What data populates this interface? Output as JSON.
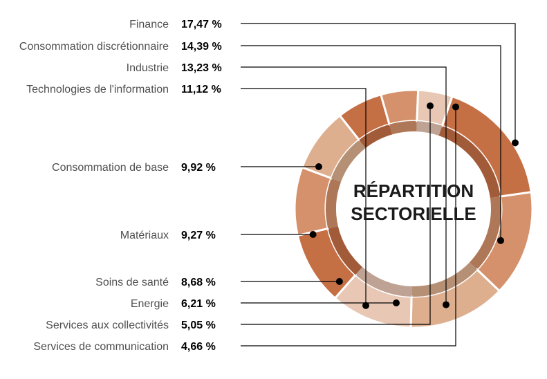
{
  "chart_data": {
    "type": "pie",
    "title_lines": [
      "RÉPARTITION",
      "SECTORIELLE"
    ],
    "categories": [
      "Finance",
      "Consommation discrétionnaire",
      "Industrie",
      "Technologies de l'information",
      "Consommation de base",
      "Matériaux",
      "Soins de santé",
      "Energie",
      "Services aux collectivités",
      "Services de communication"
    ],
    "values": [
      17.47,
      14.39,
      13.23,
      11.12,
      9.92,
      9.27,
      8.68,
      6.21,
      5.05,
      4.66
    ],
    "value_labels": [
      "17,47 %",
      "14,39 %",
      "13,23 %",
      "11,12 %",
      "9,92 %",
      "9,27 %",
      "8,68 %",
      "6,21 %",
      "5,05 %",
      "4,66 %"
    ],
    "colors": [
      "#c56f45",
      "#d4916b",
      "#ddaf8f",
      "#e8c7b4",
      "#c56f45",
      "#d4916b",
      "#ddaf8f",
      "#c56f45",
      "#d4916b",
      "#e8c7b4"
    ],
    "legend": "left"
  }
}
